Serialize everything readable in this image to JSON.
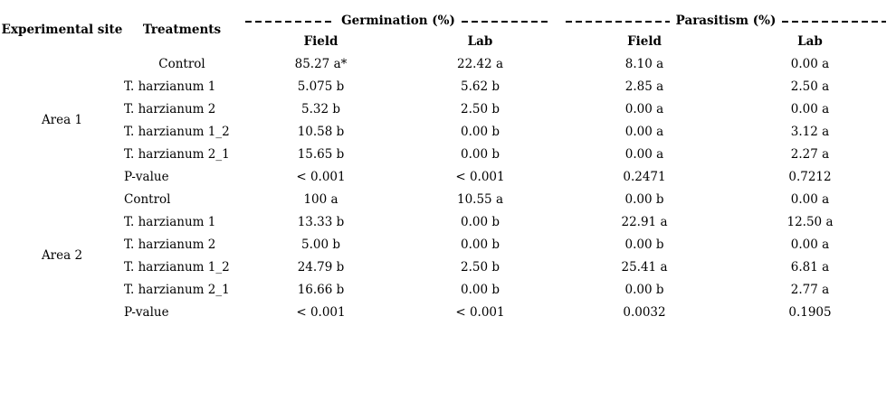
{
  "table": {
    "header": {
      "site": "Experimental site",
      "treatments": "Treatments",
      "germination_group": "Germination (%)",
      "parasitism_group": "Parasitism (%)",
      "subcolumns": [
        "Field",
        "Lab",
        "Field",
        "Lab"
      ]
    },
    "areas": [
      {
        "site": "Area 1",
        "rows": [
          {
            "treatment": "Control",
            "germ_field": "85.27 a*",
            "germ_lab": "22.42 a",
            "para_field": "8.10 a",
            "para_lab": "0.00 a"
          },
          {
            "treatment": "T. harzianum 1",
            "germ_field": "5.075 b",
            "germ_lab": "5.62 b",
            "para_field": "2.85 a",
            "para_lab": "2.50 a"
          },
          {
            "treatment": "T. harzianum 2",
            "germ_field": "5.32 b",
            "germ_lab": "2.50 b",
            "para_field": "0.00 a",
            "para_lab": "0.00 a"
          },
          {
            "treatment": "T. harzianum 1_2",
            "germ_field": "10.58 b",
            "germ_lab": "0.00 b",
            "para_field": "0.00 a",
            "para_lab": "3.12 a"
          },
          {
            "treatment": "T. harzianum 2_1",
            "germ_field": "15.65 b",
            "germ_lab": "0.00 b",
            "para_field": "0.00 a",
            "para_lab": "2.27 a"
          },
          {
            "treatment": "P-value",
            "germ_field": "< 0.001",
            "germ_lab": "< 0.001",
            "para_field": "0.2471",
            "para_lab": "0.7212"
          }
        ]
      },
      {
        "site": "Area 2",
        "rows": [
          {
            "treatment": "Control",
            "germ_field": "100 a",
            "germ_lab": "10.55 a",
            "para_field": "0.00 b",
            "para_lab": "0.00 a"
          },
          {
            "treatment": "T. harzianum 1",
            "germ_field": "13.33 b",
            "germ_lab": "0.00 b",
            "para_field": "22.91 a",
            "para_lab": "12.50 a"
          },
          {
            "treatment": "T. harzianum 2",
            "germ_field": "5.00 b",
            "germ_lab": "0.00 b",
            "para_field": "0.00 b",
            "para_lab": "0.00 a"
          },
          {
            "treatment": "T. harzianum 1_2",
            "germ_field": "24.79 b",
            "germ_lab": "2.50 b",
            "para_field": "25.41 a",
            "para_lab": "6.81 a"
          },
          {
            "treatment": "T. harzianum 2_1",
            "germ_field": "16.66 b",
            "germ_lab": "0.00 b",
            "para_field": "0.00 b",
            "para_lab": "2.77 a"
          },
          {
            "treatment": "P-value",
            "germ_field": "< 0.001",
            "germ_lab": "< 0.001",
            "para_field": "0.0032",
            "para_lab": "0.1905"
          }
        ]
      }
    ]
  }
}
